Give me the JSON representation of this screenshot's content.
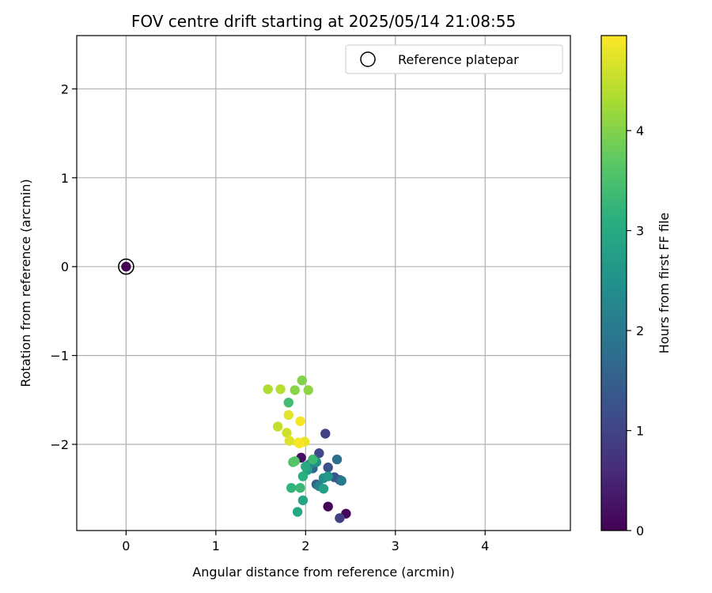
{
  "chart_data": {
    "type": "scatter",
    "title": "FOV centre drift starting at 2025/05/14 21:08:55",
    "xlabel": "Angular distance from reference (arcmin)",
    "ylabel": "Rotation from reference (arcmin)",
    "xlim": [
      -0.55,
      4.95
    ],
    "ylim": [
      -2.97,
      2.6
    ],
    "xticks": [
      0,
      1,
      2,
      3,
      4
    ],
    "yticks": [
      -2,
      -1,
      0,
      1,
      2
    ],
    "grid": true,
    "legend": {
      "location": "top-right",
      "entries": [
        "Reference platepar"
      ]
    },
    "colorbar": {
      "label": "Hours from first FF file",
      "range": [
        0,
        4.95
      ],
      "ticks": [
        0,
        1,
        2,
        3,
        4
      ],
      "colormap": "viridis"
    },
    "reference_point": {
      "x": 0,
      "y": 0
    },
    "points": [
      {
        "x": 0.0,
        "y": 0.0,
        "hours": 0.0
      },
      {
        "x": 2.25,
        "y": -2.7,
        "hours": 0.05
      },
      {
        "x": 2.45,
        "y": -2.78,
        "hours": 0.1
      },
      {
        "x": 1.95,
        "y": -2.15,
        "hours": 0.2
      },
      {
        "x": 2.38,
        "y": -2.83,
        "hours": 0.9
      },
      {
        "x": 2.22,
        "y": -1.88,
        "hours": 1.0
      },
      {
        "x": 2.15,
        "y": -2.1,
        "hours": 1.1
      },
      {
        "x": 2.25,
        "y": -2.26,
        "hours": 1.2
      },
      {
        "x": 2.32,
        "y": -2.37,
        "hours": 1.3
      },
      {
        "x": 2.38,
        "y": -2.4,
        "hours": 1.4
      },
      {
        "x": 2.12,
        "y": -2.45,
        "hours": 1.5
      },
      {
        "x": 2.08,
        "y": -2.27,
        "hours": 1.6
      },
      {
        "x": 2.35,
        "y": -2.17,
        "hours": 1.8
      },
      {
        "x": 2.4,
        "y": -2.41,
        "hours": 2.0
      },
      {
        "x": 2.15,
        "y": -2.47,
        "hours": 2.2
      },
      {
        "x": 2.05,
        "y": -2.22,
        "hours": 2.3
      },
      {
        "x": 2.2,
        "y": -2.38,
        "hours": 2.4
      },
      {
        "x": 2.12,
        "y": -2.2,
        "hours": 2.5
      },
      {
        "x": 2.25,
        "y": -2.36,
        "hours": 2.6
      },
      {
        "x": 2.02,
        "y": -2.29,
        "hours": 2.7
      },
      {
        "x": 2.2,
        "y": -2.5,
        "hours": 2.8
      },
      {
        "x": 1.97,
        "y": -2.63,
        "hours": 2.9
      },
      {
        "x": 1.91,
        "y": -2.76,
        "hours": 2.95
      },
      {
        "x": 2.0,
        "y": -2.25,
        "hours": 3.0
      },
      {
        "x": 1.97,
        "y": -2.36,
        "hours": 3.1
      },
      {
        "x": 1.84,
        "y": -2.49,
        "hours": 3.2
      },
      {
        "x": 1.94,
        "y": -2.49,
        "hours": 3.3
      },
      {
        "x": 2.08,
        "y": -2.17,
        "hours": 3.35
      },
      {
        "x": 1.81,
        "y": -1.53,
        "hours": 3.4
      },
      {
        "x": 1.86,
        "y": -2.2,
        "hours": 3.5
      },
      {
        "x": 1.88,
        "y": -2.19,
        "hours": 3.6
      },
      {
        "x": 1.96,
        "y": -1.28,
        "hours": 4.0
      },
      {
        "x": 1.88,
        "y": -1.39,
        "hours": 4.05
      },
      {
        "x": 2.03,
        "y": -1.39,
        "hours": 4.1
      },
      {
        "x": 1.58,
        "y": -1.38,
        "hours": 4.35
      },
      {
        "x": 1.72,
        "y": -1.38,
        "hours": 4.4
      },
      {
        "x": 1.69,
        "y": -1.8,
        "hours": 4.5
      },
      {
        "x": 1.79,
        "y": -1.87,
        "hours": 4.6
      },
      {
        "x": 1.82,
        "y": -1.96,
        "hours": 4.7
      },
      {
        "x": 1.81,
        "y": -1.67,
        "hours": 4.75
      },
      {
        "x": 1.99,
        "y": -1.97,
        "hours": 4.8
      },
      {
        "x": 1.92,
        "y": -1.98,
        "hours": 4.85
      },
      {
        "x": 1.94,
        "y": -1.74,
        "hours": 4.9
      },
      {
        "x": 1.93,
        "y": -1.99,
        "hours": 4.92
      }
    ]
  }
}
